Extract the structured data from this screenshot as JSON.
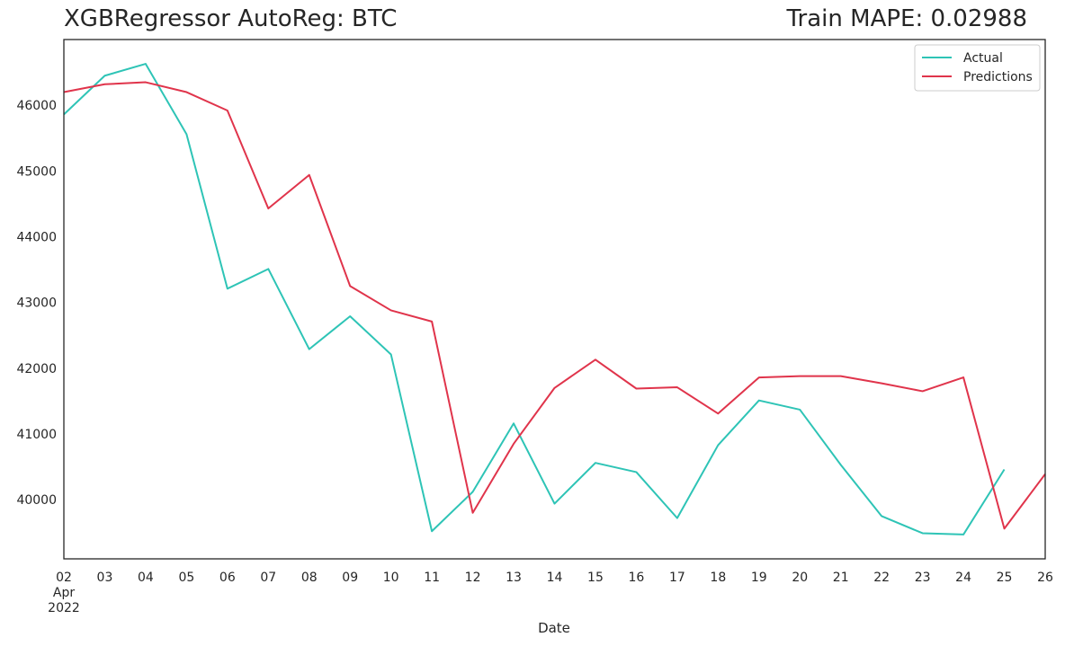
{
  "chart_data": {
    "type": "line",
    "title": "XGBRegressor AutoReg: BTC",
    "subtitle": "Train MAPE: 0.02988",
    "xlabel": "Date",
    "ylabel": "",
    "x": [
      "2022-04-02",
      "2022-04-03",
      "2022-04-04",
      "2022-04-05",
      "2022-04-06",
      "2022-04-07",
      "2022-04-08",
      "2022-04-09",
      "2022-04-10",
      "2022-04-11",
      "2022-04-12",
      "2022-04-13",
      "2022-04-14",
      "2022-04-15",
      "2022-04-16",
      "2022-04-17",
      "2022-04-18",
      "2022-04-19",
      "2022-04-20",
      "2022-04-21",
      "2022-04-22",
      "2022-04-23",
      "2022-04-24",
      "2022-04-25",
      "2022-04-26"
    ],
    "xticks": [
      {
        "lines": [
          "02",
          "Apr",
          "2022"
        ]
      },
      {
        "lines": [
          "03"
        ]
      },
      {
        "lines": [
          "04"
        ]
      },
      {
        "lines": [
          "05"
        ]
      },
      {
        "lines": [
          "06"
        ]
      },
      {
        "lines": [
          "07"
        ]
      },
      {
        "lines": [
          "08"
        ]
      },
      {
        "lines": [
          "09"
        ]
      },
      {
        "lines": [
          "10"
        ]
      },
      {
        "lines": [
          "11"
        ]
      },
      {
        "lines": [
          "12"
        ]
      },
      {
        "lines": [
          "13"
        ]
      },
      {
        "lines": [
          "14"
        ]
      },
      {
        "lines": [
          "15"
        ]
      },
      {
        "lines": [
          "16"
        ]
      },
      {
        "lines": [
          "17"
        ]
      },
      {
        "lines": [
          "18"
        ]
      },
      {
        "lines": [
          "19"
        ]
      },
      {
        "lines": [
          "20"
        ]
      },
      {
        "lines": [
          "21"
        ]
      },
      {
        "lines": [
          "22"
        ]
      },
      {
        "lines": [
          "23"
        ]
      },
      {
        "lines": [
          "24"
        ]
      },
      {
        "lines": [
          "25"
        ]
      },
      {
        "lines": [
          "26"
        ]
      }
    ],
    "yticks": [
      40000,
      41000,
      42000,
      43000,
      44000,
      45000,
      46000
    ],
    "ylim": [
      39100,
      47000
    ],
    "grid": false,
    "legend_position": "top-right",
    "series": [
      {
        "name": "Actual",
        "color": "#2ec4b6",
        "values": [
          45860,
          46450,
          46630,
          45560,
          43210,
          43510,
          42290,
          42790,
          42210,
          39520,
          40120,
          41160,
          39940,
          40560,
          40420,
          39720,
          40830,
          41510,
          41370,
          40530,
          39750,
          39490,
          39470,
          40460,
          null
        ]
      },
      {
        "name": "Predictions",
        "color": "#e0344b",
        "values": [
          46200,
          46320,
          46350,
          46200,
          45920,
          44430,
          44940,
          43250,
          42880,
          42710,
          39800,
          40850,
          41700,
          42130,
          41690,
          41710,
          41310,
          41860,
          41880,
          41880,
          41770,
          41650,
          41860,
          39560,
          40390
        ]
      }
    ]
  }
}
